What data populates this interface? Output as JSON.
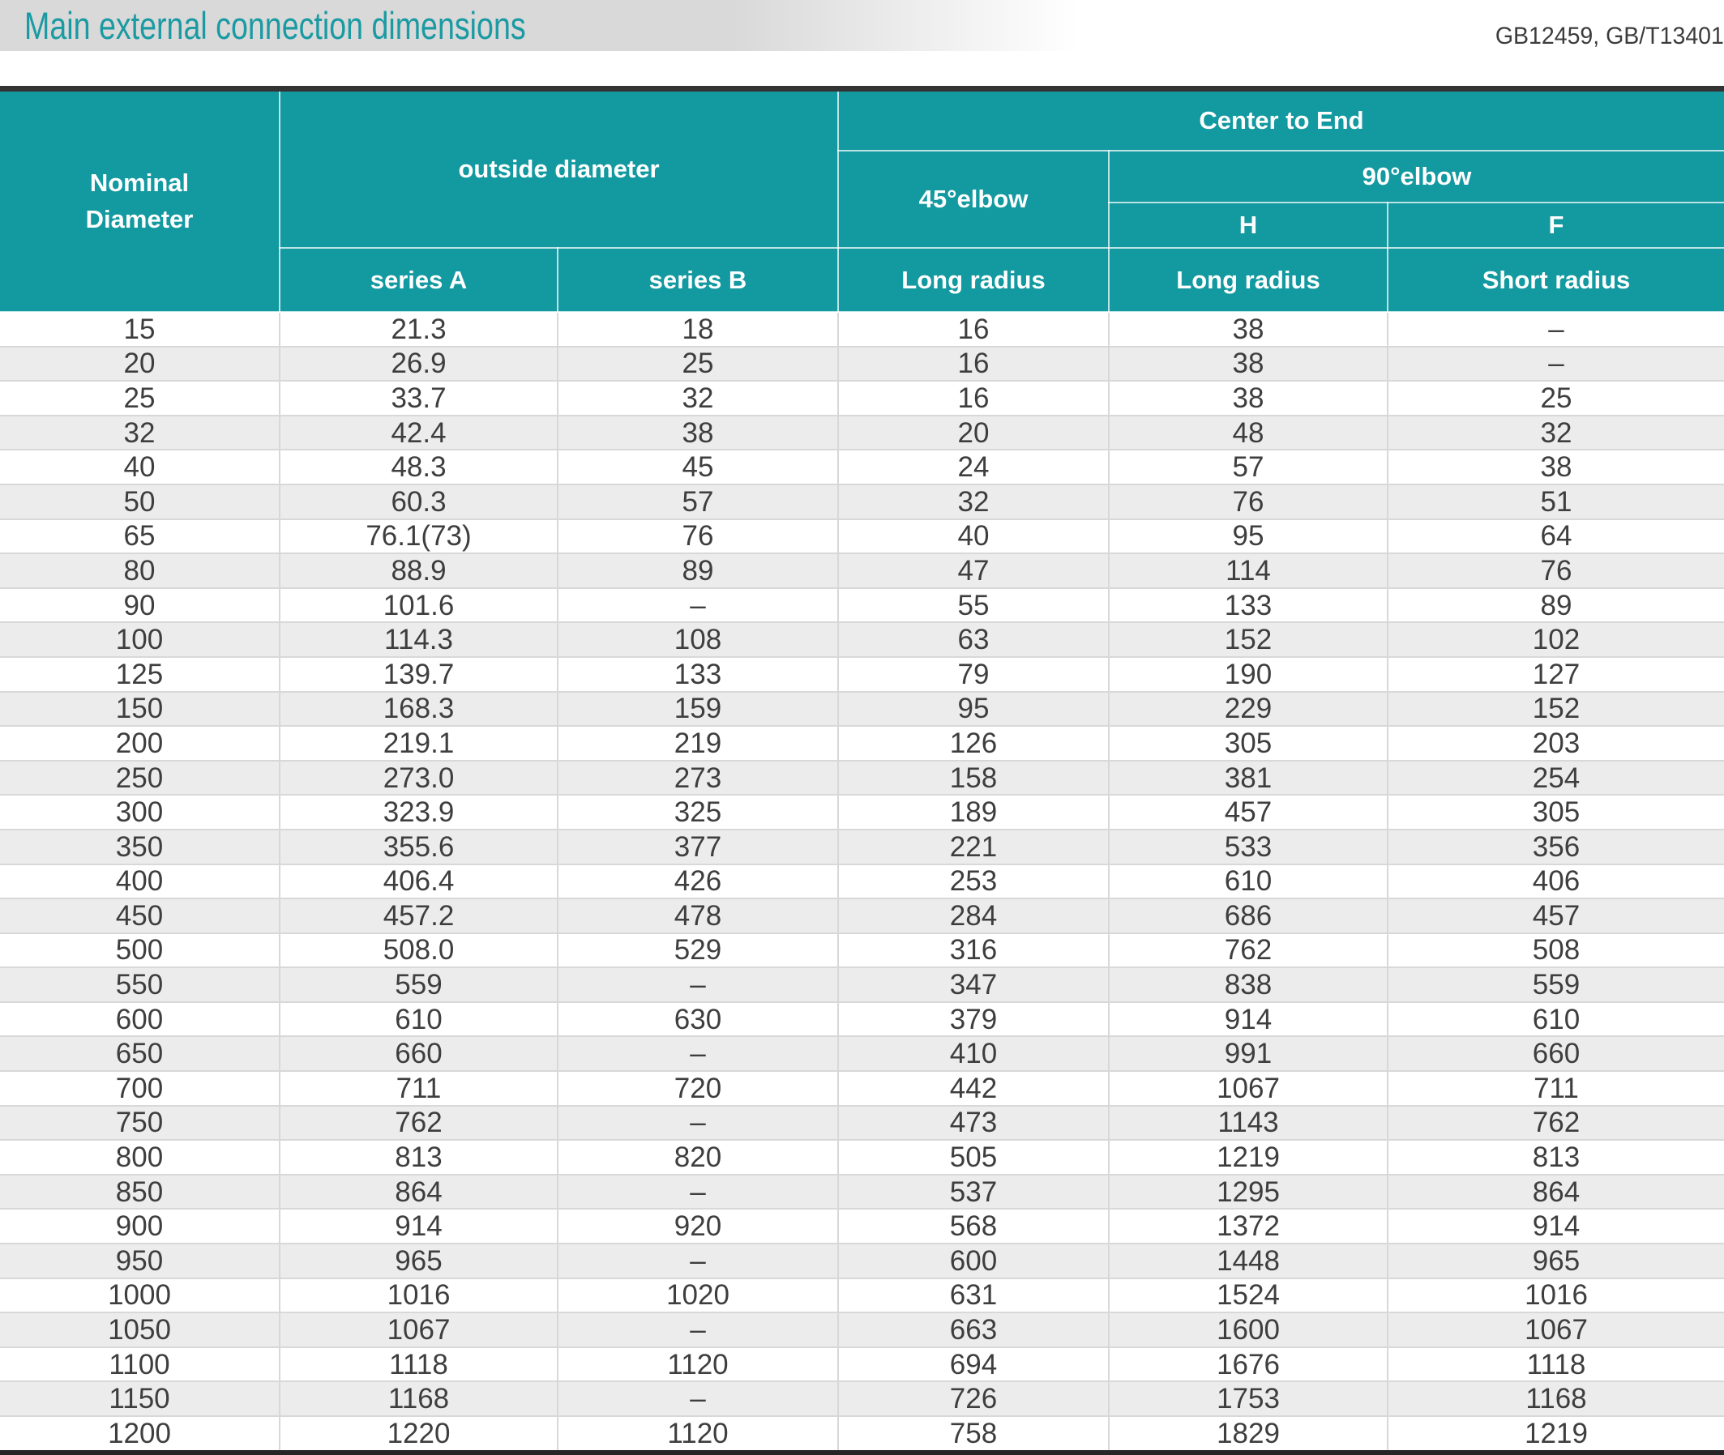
{
  "title": "Main external connection dimensions",
  "standards": "GB12459, GB/T13401",
  "colors": {
    "accent_teal": "#1399a0",
    "title_text": "#1a9aa2",
    "title_band_gray": "#d9d9d9",
    "top_bar": "#333333",
    "bottom_bar": "#262626",
    "row_stripe": "#ececec",
    "grid_line": "#d8d8d8",
    "data_text": "#3e3e3e"
  },
  "table": {
    "header": {
      "nominal": "Nominal\nDiameter",
      "outside": "outside diameter",
      "center_to_end": "Center to End",
      "elbow45": "45°elbow",
      "elbow90": "90°elbow",
      "h": "H",
      "f": "F",
      "series_a": "series A",
      "series_b": "series B",
      "long_radius_45": "Long radius",
      "long_radius_h": "Long radius",
      "short_radius": "Short radius"
    },
    "column_keys": [
      "nominal-diameter",
      "series-a",
      "series-b",
      "elbow45-long-radius",
      "elbow90-h-long-radius",
      "elbow90-f-short-radius"
    ],
    "rows": [
      [
        "15",
        "21.3",
        "18",
        "16",
        "38",
        "–"
      ],
      [
        "20",
        "26.9",
        "25",
        "16",
        "38",
        "–"
      ],
      [
        "25",
        "33.7",
        "32",
        "16",
        "38",
        "25"
      ],
      [
        "32",
        "42.4",
        "38",
        "20",
        "48",
        "32"
      ],
      [
        "40",
        "48.3",
        "45",
        "24",
        "57",
        "38"
      ],
      [
        "50",
        "60.3",
        "57",
        "32",
        "76",
        "51"
      ],
      [
        "65",
        "76.1(73)",
        "76",
        "40",
        "95",
        "64"
      ],
      [
        "80",
        "88.9",
        "89",
        "47",
        "114",
        "76"
      ],
      [
        "90",
        "101.6",
        "–",
        "55",
        "133",
        "89"
      ],
      [
        "100",
        "114.3",
        "108",
        "63",
        "152",
        "102"
      ],
      [
        "125",
        "139.7",
        "133",
        "79",
        "190",
        "127"
      ],
      [
        "150",
        "168.3",
        "159",
        "95",
        "229",
        "152"
      ],
      [
        "200",
        "219.1",
        "219",
        "126",
        "305",
        "203"
      ],
      [
        "250",
        "273.0",
        "273",
        "158",
        "381",
        "254"
      ],
      [
        "300",
        "323.9",
        "325",
        "189",
        "457",
        "305"
      ],
      [
        "350",
        "355.6",
        "377",
        "221",
        "533",
        "356"
      ],
      [
        "400",
        "406.4",
        "426",
        "253",
        "610",
        "406"
      ],
      [
        "450",
        "457.2",
        "478",
        "284",
        "686",
        "457"
      ],
      [
        "500",
        "508.0",
        "529",
        "316",
        "762",
        "508"
      ],
      [
        "550",
        "559",
        "–",
        "347",
        "838",
        "559"
      ],
      [
        "600",
        "610",
        "630",
        "379",
        "914",
        "610"
      ],
      [
        "650",
        "660",
        "–",
        "410",
        "991",
        "660"
      ],
      [
        "700",
        "711",
        "720",
        "442",
        "1067",
        "711"
      ],
      [
        "750",
        "762",
        "–",
        "473",
        "1143",
        "762"
      ],
      [
        "800",
        "813",
        "820",
        "505",
        "1219",
        "813"
      ],
      [
        "850",
        "864",
        "–",
        "537",
        "1295",
        "864"
      ],
      [
        "900",
        "914",
        "920",
        "568",
        "1372",
        "914"
      ],
      [
        "950",
        "965",
        "–",
        "600",
        "1448",
        "965"
      ],
      [
        "1000",
        "1016",
        "1020",
        "631",
        "1524",
        "1016"
      ],
      [
        "1050",
        "1067",
        "–",
        "663",
        "1600",
        "1067"
      ],
      [
        "1100",
        "1118",
        "1120",
        "694",
        "1676",
        "1118"
      ],
      [
        "1150",
        "1168",
        "–",
        "726",
        "1753",
        "1168"
      ],
      [
        "1200",
        "1220",
        "1120",
        "758",
        "1829",
        "1219"
      ]
    ]
  }
}
